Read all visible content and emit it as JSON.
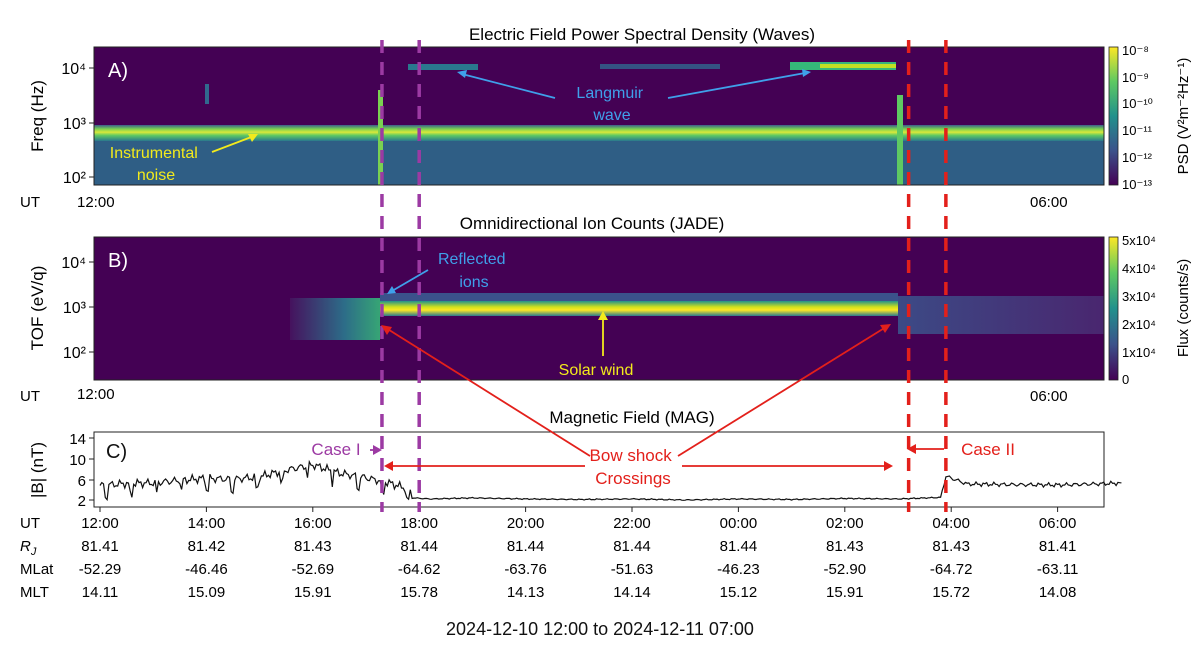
{
  "caption": "2024-12-10 12:00 to 2024-12-11 07:00",
  "ut_label": "UT",
  "ut_ticks_short": [
    "12:00",
    "06:00"
  ],
  "chart_data": [
    {
      "type": "heatmap",
      "panel_label": "A)",
      "title": "Electric Field Power Spectral Density (Waves)",
      "ylabel": "Freq (Hz)",
      "y_scale": "log",
      "ylim": [
        70,
        25000
      ],
      "yticks": [
        {
          "value": 100,
          "label": "10²"
        },
        {
          "value": 1000,
          "label": "10³"
        },
        {
          "value": 10000,
          "label": "10⁴"
        }
      ],
      "x_tick_labels": [
        "12:00",
        "06:00"
      ],
      "colorbar": {
        "label": "PSD (V²m⁻²Hz⁻¹)",
        "scale": "log",
        "range": [
          1e-13,
          1e-08
        ],
        "tick_labels": [
          "10⁻⁸",
          "10⁻⁹",
          "10⁻¹⁰",
          "10⁻¹¹",
          "10⁻¹²",
          "10⁻¹³"
        ]
      },
      "annotations": [
        {
          "text": "Instrumental\nnoise",
          "color": "#f2ea1c"
        },
        {
          "text": "Langmuir\nwave",
          "color": "#3fa0ea"
        }
      ]
    },
    {
      "type": "heatmap",
      "panel_label": "B)",
      "title": "Omnidirectional Ion Counts (JADE)",
      "ylabel": "TOF (eV/q)",
      "y_scale": "log",
      "ylim": [
        20,
        50000
      ],
      "yticks": [
        {
          "value": 100,
          "label": "10²"
        },
        {
          "value": 1000,
          "label": "10³"
        },
        {
          "value": 10000,
          "label": "10⁴"
        }
      ],
      "x_tick_labels": [
        "12:00",
        "06:00"
      ],
      "colorbar": {
        "label": "Flux (counts/s)",
        "scale": "linear",
        "range": [
          0,
          50000
        ],
        "tick_labels": [
          "5x10⁴",
          "4x10⁴",
          "3x10⁴",
          "2x10⁴",
          "1x10⁴",
          "0"
        ]
      },
      "annotations": [
        {
          "text": "Reflected\nions",
          "color": "#3fa0ea"
        },
        {
          "text": "Solar wind",
          "color": "#f2ea1c"
        }
      ]
    },
    {
      "type": "line",
      "panel_label": "C)",
      "title": "Magnetic Field (MAG)",
      "ylabel": "|B| (nT)",
      "ylim": [
        1,
        14
      ],
      "yticks": [
        2,
        6,
        10,
        14
      ],
      "xlim": [
        0,
        19.2
      ],
      "x_unit": "hours after 2024-12-10 12:00 UT",
      "series": [
        {
          "color": "#111111",
          "x": [
            0,
            0.5,
            1,
            1.5,
            2,
            2.5,
            3,
            3.5,
            4,
            4.5,
            5,
            5.4,
            5.8,
            5.9,
            6.2,
            7,
            8,
            9,
            10,
            11,
            12,
            13,
            14,
            15,
            15.8,
            15.9,
            16.3,
            17,
            18,
            19,
            19.2
          ],
          "values": [
            4.8,
            5.2,
            5.3,
            5.8,
            6.2,
            6.0,
            6.5,
            7.8,
            8.8,
            7.2,
            6.3,
            5.4,
            4.1,
            2.4,
            2.2,
            2.4,
            2.2,
            2.1,
            2.2,
            2.0,
            2.2,
            2.1,
            2.3,
            2.2,
            2.5,
            6.6,
            5.1,
            5.0,
            4.9,
            5.2,
            5.3
          ]
        }
      ],
      "annotations": [
        {
          "text": "Case I",
          "color": "#9c3aa3"
        },
        {
          "text": "Bow shock\nCrossings",
          "color": "#e3201b"
        },
        {
          "text": "Case II",
          "color": "#e3201b"
        }
      ]
    }
  ],
  "event_lines": [
    {
      "hours": 5.3,
      "color": "#9c3aa3"
    },
    {
      "hours": 6.0,
      "color": "#9c3aa3"
    },
    {
      "hours": 15.2,
      "color": "#e3201b"
    },
    {
      "hours": 15.9,
      "color": "#e3201b"
    }
  ],
  "ephemeris": {
    "rows": [
      {
        "label": "UT",
        "values": [
          "12:00",
          "14:00",
          "16:00",
          "18:00",
          "20:00",
          "22:00",
          "00:00",
          "02:00",
          "04:00",
          "06:00"
        ]
      },
      {
        "label": "R_J",
        "values": [
          "81.41",
          "81.42",
          "81.43",
          "81.44",
          "81.44",
          "81.44",
          "81.44",
          "81.43",
          "81.43",
          "81.41"
        ]
      },
      {
        "label": "MLat",
        "values": [
          "-52.29",
          "-46.46",
          "-52.69",
          "-64.62",
          "-63.76",
          "-51.63",
          "-46.23",
          "-52.90",
          "-64.72",
          "-63.11"
        ]
      },
      {
        "label": "MLT",
        "values": [
          "14.11",
          "15.09",
          "15.91",
          "15.78",
          "14.13",
          "14.14",
          "15.12",
          "15.91",
          "15.72",
          "14.08"
        ]
      }
    ]
  }
}
